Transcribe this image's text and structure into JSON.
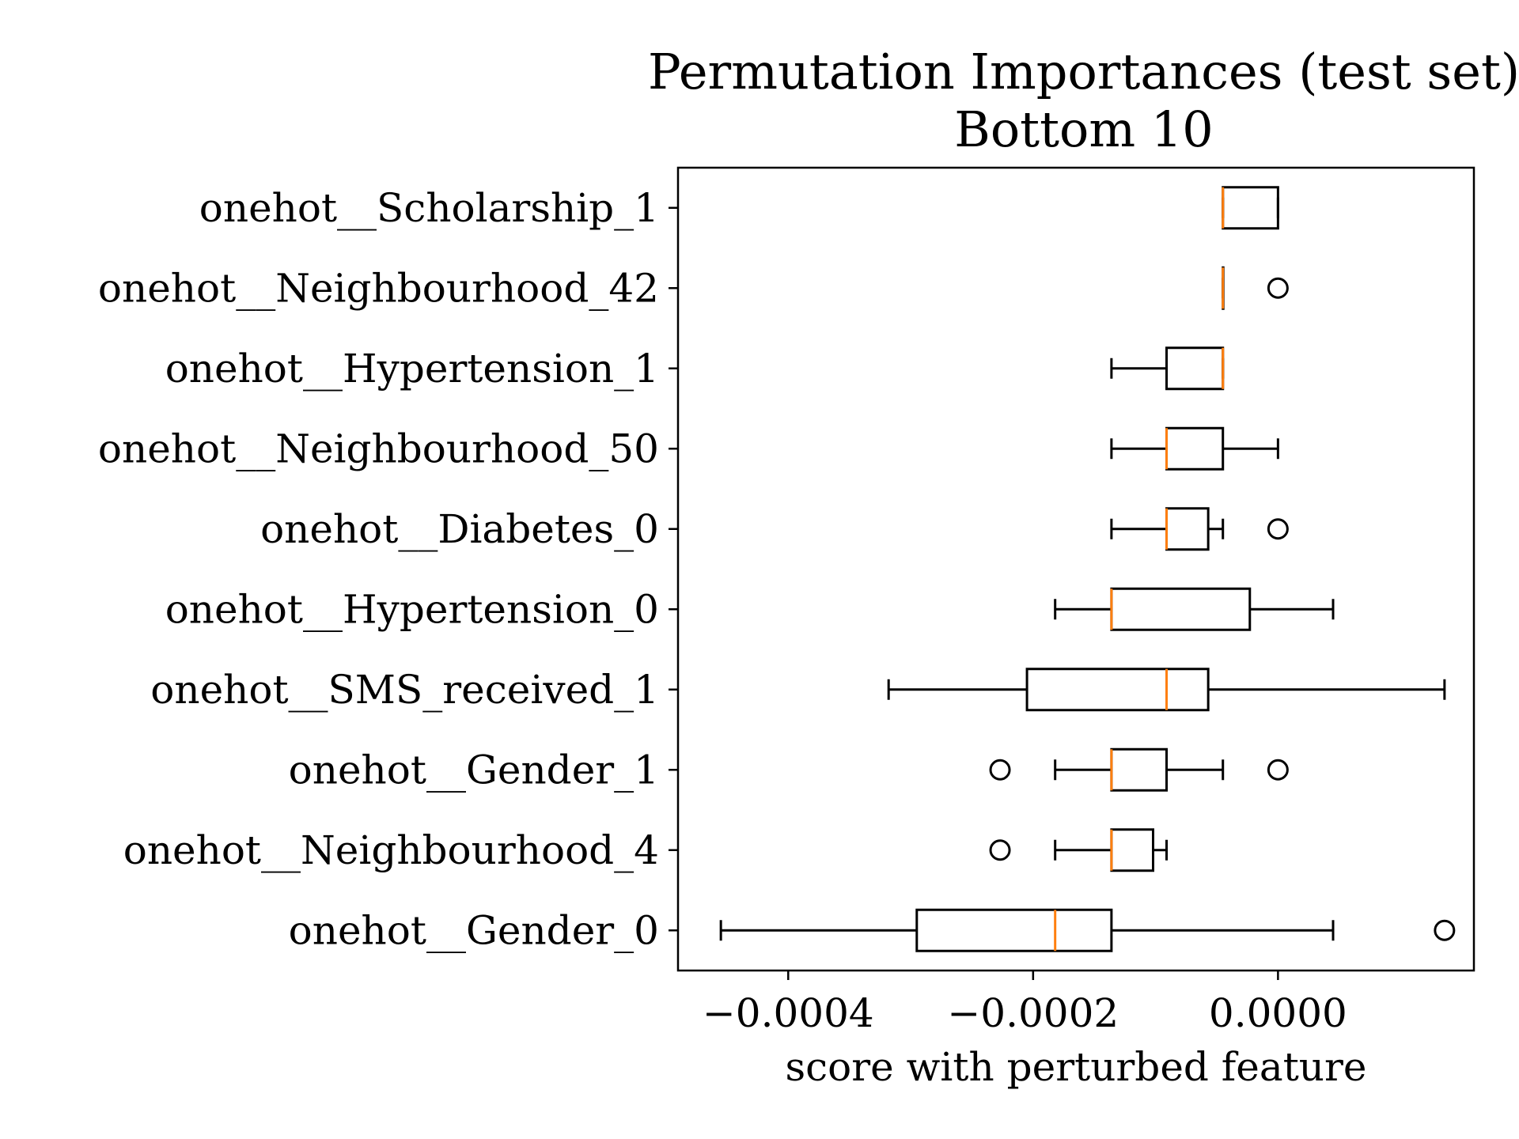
{
  "chart_data": {
    "type": "boxplot",
    "orientation": "horizontal",
    "title": "Permutation Importances (test set)",
    "subtitle": "Bottom 10",
    "xlabel": "score with perturbed feature",
    "ylabel": "",
    "xlim": [
      -0.00049,
      0.00016
    ],
    "xticks": [
      -0.0004,
      -0.0002,
      0.0
    ],
    "xtick_labels": [
      "−0.0004",
      "−0.0002",
      "0.0000"
    ],
    "grid": false,
    "colors": {
      "box": "#000000",
      "median": "#ff7f0e",
      "background": "#ffffff"
    },
    "series": [
      {
        "name": "onehot__Scholarship_1",
        "whisker_low": -4.5e-05,
        "q1": -4.5e-05,
        "median": -4.5e-05,
        "q3": 0.0,
        "whisker_high": 0.0,
        "outliers": []
      },
      {
        "name": "onehot__Neighbourhood_42",
        "whisker_low": -4.5e-05,
        "q1": -4.5e-05,
        "median": -4.5e-05,
        "q3": -4.5e-05,
        "whisker_high": -4.5e-05,
        "outliers": [
          0.0
        ]
      },
      {
        "name": "onehot__Hypertension_1",
        "whisker_low": -0.000136,
        "q1": -9.1e-05,
        "median": -4.5e-05,
        "q3": -4.5e-05,
        "whisker_high": -4.5e-05,
        "outliers": []
      },
      {
        "name": "onehot__Neighbourhood_50",
        "whisker_low": -0.000136,
        "q1": -9.1e-05,
        "median": -9.1e-05,
        "q3": -4.5e-05,
        "whisker_high": 0.0,
        "outliers": []
      },
      {
        "name": "onehot__Diabetes_0",
        "whisker_low": -0.000136,
        "q1": -9.1e-05,
        "median": -9.1e-05,
        "q3": -5.7e-05,
        "whisker_high": -4.5e-05,
        "outliers": [
          0.0
        ]
      },
      {
        "name": "onehot__Hypertension_0",
        "whisker_low": -0.000182,
        "q1": -0.000136,
        "median": -0.000136,
        "q3": -2.3e-05,
        "whisker_high": 4.5e-05,
        "outliers": []
      },
      {
        "name": "onehot__SMS_received_1",
        "whisker_low": -0.000318,
        "q1": -0.000205,
        "median": -9.1e-05,
        "q3": -5.7e-05,
        "whisker_high": 0.000136,
        "outliers": []
      },
      {
        "name": "onehot__Gender_1",
        "whisker_low": -0.000182,
        "q1": -0.000136,
        "median": -0.000136,
        "q3": -9.1e-05,
        "whisker_high": -4.5e-05,
        "outliers": [
          -0.000227,
          0.0
        ]
      },
      {
        "name": "onehot__Neighbourhood_4",
        "whisker_low": -0.000182,
        "q1": -0.000136,
        "median": -0.000136,
        "q3": -0.000102,
        "whisker_high": -9.1e-05,
        "outliers": [
          -0.000227
        ]
      },
      {
        "name": "onehot__Gender_0",
        "whisker_low": -0.000455,
        "q1": -0.000295,
        "median": -0.000182,
        "q3": -0.000136,
        "whisker_high": 4.5e-05,
        "outliers": [
          0.000136
        ]
      }
    ]
  }
}
